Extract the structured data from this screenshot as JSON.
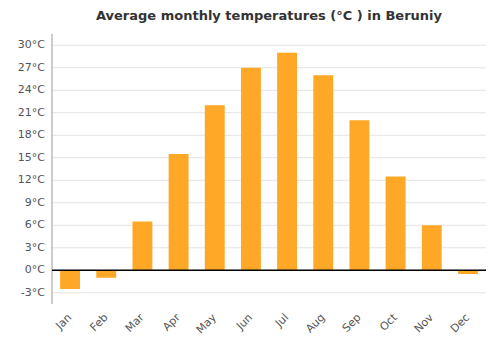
{
  "chart_data": {
    "type": "bar",
    "title": "Average monthly temperatures (°C ) in Beruniy",
    "categories": [
      "Jan",
      "Feb",
      "Mar",
      "Apr",
      "May",
      "Jun",
      "Jul",
      "Aug",
      "Sep",
      "Oct",
      "Nov",
      "Dec"
    ],
    "values": [
      -2.5,
      -1.0,
      6.5,
      15.5,
      22.0,
      27.0,
      29.0,
      26.0,
      20.0,
      12.5,
      6.0,
      -0.5
    ],
    "color": "#FFA726",
    "ylim": [
      -4.5,
      31.5
    ],
    "yticks": [
      {
        "value": -3,
        "label": "-3°C"
      },
      {
        "value": 0,
        "label": "0°C"
      },
      {
        "value": 3,
        "label": "3°C"
      },
      {
        "value": 6,
        "label": "6°C"
      },
      {
        "value": 9,
        "label": "9°C"
      },
      {
        "value": 12,
        "label": "12°C"
      },
      {
        "value": 15,
        "label": "15°C"
      },
      {
        "value": 18,
        "label": "18°C"
      },
      {
        "value": 21,
        "label": "21°C"
      },
      {
        "value": 24,
        "label": "24°C"
      },
      {
        "value": 27,
        "label": "27°C"
      },
      {
        "value": 30,
        "label": "30°C"
      }
    ],
    "grid": true
  }
}
